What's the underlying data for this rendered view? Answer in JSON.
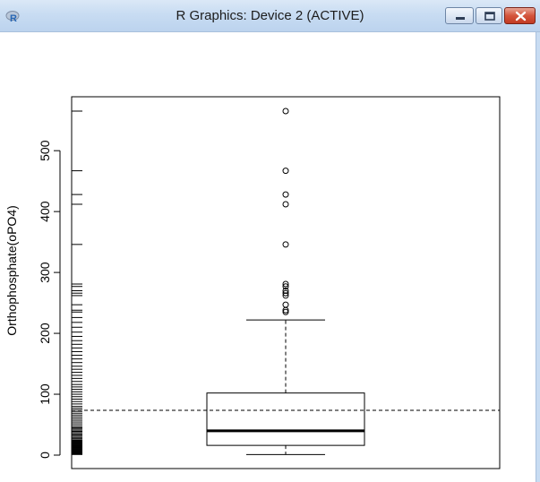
{
  "window": {
    "title": "R Graphics: Device 2 (ACTIVE)",
    "icon": "r-logo-icon",
    "controls": [
      "minimize-icon",
      "maximize-icon",
      "close-icon"
    ]
  },
  "chart_data": {
    "type": "boxplot",
    "title": "",
    "xlabel": "",
    "ylabel": "Orthophosphate(oPO4)",
    "ylim": [
      0,
      565
    ],
    "yticks": [
      0,
      100,
      200,
      300,
      400,
      500
    ],
    "box": {
      "q1": 16,
      "median": 40,
      "q3": 102,
      "whisker_low": 1,
      "whisker_high": 222
    },
    "outliers": [
      565,
      467,
      428,
      412,
      346,
      281,
      277,
      270,
      266,
      262,
      247,
      238,
      235
    ],
    "mean_line": {
      "value": 73.6,
      "style": "dashed"
    },
    "rug": [
      1,
      2,
      3,
      4,
      5,
      6,
      7,
      8,
      9,
      10,
      11,
      12,
      13,
      14,
      15,
      16,
      17,
      18,
      19,
      20,
      21,
      22,
      23,
      24,
      25,
      27,
      29,
      31,
      33,
      35,
      37,
      39,
      41,
      43,
      45,
      47,
      50,
      53,
      56,
      59,
      62,
      65,
      68,
      71,
      74,
      77,
      80,
      84,
      88,
      92,
      96,
      100,
      104,
      108,
      112,
      116,
      121,
      126,
      131,
      136,
      141,
      146,
      152,
      158,
      164,
      170,
      176,
      182,
      188,
      195,
      202,
      210,
      218,
      226,
      235,
      238,
      247,
      262,
      266,
      270,
      277,
      281,
      346,
      412,
      428,
      467,
      565
    ]
  }
}
